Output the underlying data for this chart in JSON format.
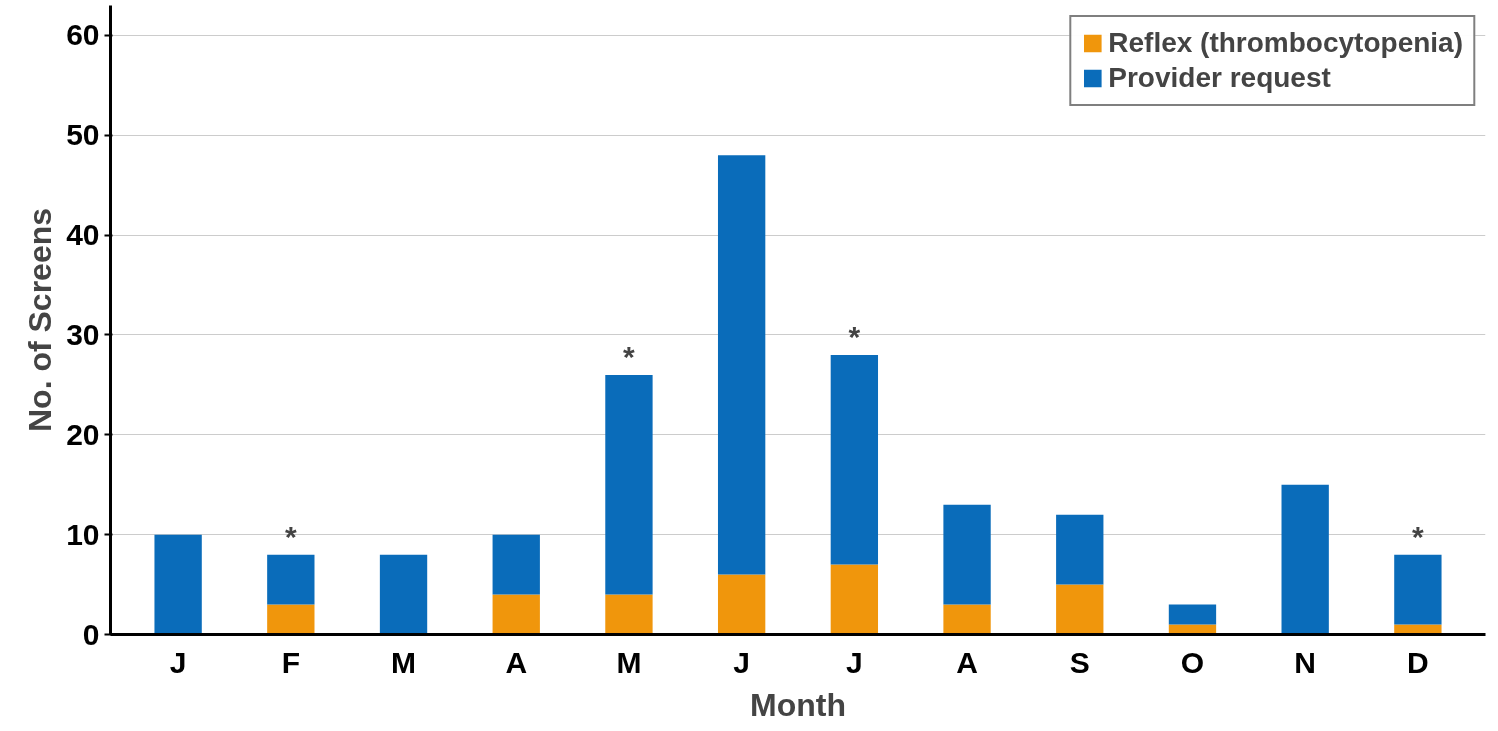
{
  "chart_data": {
    "type": "bar",
    "stacked": true,
    "xlabel": "Month",
    "ylabel": "No. of Screens",
    "categories": [
      "J",
      "F",
      "M",
      "A",
      "M",
      "J",
      "J",
      "A",
      "S",
      "O",
      "N",
      "D"
    ],
    "series": [
      {
        "name": "Reflex (thrombocytopenia)",
        "color": "#f0960c",
        "values": [
          0,
          3,
          0,
          4,
          4,
          6,
          7,
          3,
          5,
          1,
          0,
          1
        ]
      },
      {
        "name": "Provider request",
        "color": "#0a6cba",
        "values": [
          10,
          5,
          8,
          6,
          22,
          42,
          21,
          10,
          7,
          2,
          15,
          7
        ],
        "value_labels": [
          null,
          "*",
          null,
          null,
          "*",
          null,
          "*",
          null,
          null,
          null,
          null,
          "*"
        ]
      }
    ],
    "ylim": [
      0,
      63
    ],
    "yticks": [
      0,
      10,
      20,
      30,
      40,
      50,
      60
    ],
    "grid": "y",
    "legend": "top right"
  }
}
